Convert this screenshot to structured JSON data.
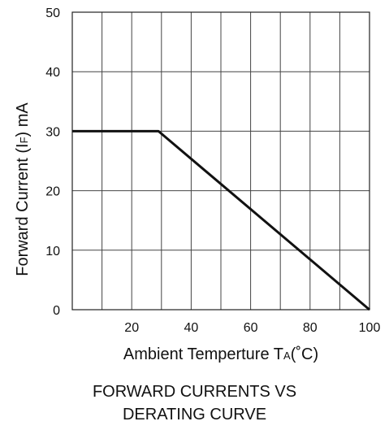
{
  "chart_data": {
    "type": "line",
    "title": "",
    "xlabel": "Ambient Temperture T",
    "xlabel_sub": "A",
    "xlabel_unit": "(˚C)",
    "ylabel": "Forward Current (I",
    "ylabel_sub": "F",
    "ylabel_unit": ") mA",
    "xlim": [
      0,
      100
    ],
    "ylim": [
      0,
      50
    ],
    "x_ticks": [
      20,
      40,
      60,
      80,
      100
    ],
    "y_ticks": [
      0,
      10,
      20,
      30,
      40,
      50
    ],
    "x_grid_step": 10,
    "y_grid_step": 10,
    "grid": true,
    "series": [
      {
        "x": [
          0,
          29,
          100
        ],
        "y": [
          30,
          30,
          0
        ]
      }
    ]
  },
  "caption": {
    "line1": "FORWARD CURRENTS VS",
    "line2": "DERATING CURVE"
  }
}
